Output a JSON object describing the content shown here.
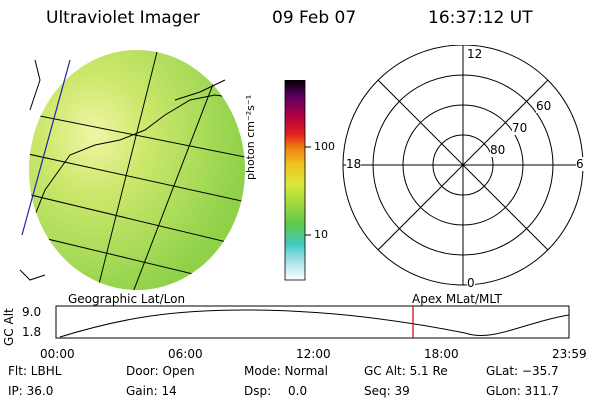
{
  "header": {
    "title": "Ultraviolet Imager",
    "date": "09 Feb 07",
    "time": "16:37:12 UT"
  },
  "colorbar": {
    "unit_label": "photon cm⁻²s⁻¹",
    "tick_100": "100",
    "tick_10": "10"
  },
  "polar_plot": {
    "mlt_labels": {
      "top": "12",
      "left": "18",
      "right": "6",
      "bottom": "0"
    },
    "lat_labels": {
      "l60": "60",
      "l70": "70",
      "l80": "80"
    }
  },
  "altitude_plot": {
    "left_label": "Geographic Lat/Lon",
    "right_label": "Apex MLat/MLT",
    "y_axis_label": "GC Alt",
    "y_ticks": {
      "max": "9.0",
      "min": "1.8"
    },
    "x_ticks": {
      "t0": "00:00",
      "t1": "06:00",
      "t2": "12:00",
      "t3": "18:00",
      "t4": "23:59"
    }
  },
  "info": {
    "flt": "Flt: LBHL",
    "ip": "IP: 36.0",
    "door": "Door: Open",
    "gain": "Gain: 14",
    "mode": "Mode: Normal",
    "dsp_label": "Dsp:",
    "dsp_value": "0.0",
    "gc_alt": "GC Alt: 5.1 Re",
    "seq": "Seq: 39",
    "glat": "GLat: −35.7",
    "glon": "GLon: 311.7"
  },
  "colors": {
    "image_fill": "#9ad94a",
    "image_bright": "#e0f08a",
    "marker": "#cc0000"
  }
}
